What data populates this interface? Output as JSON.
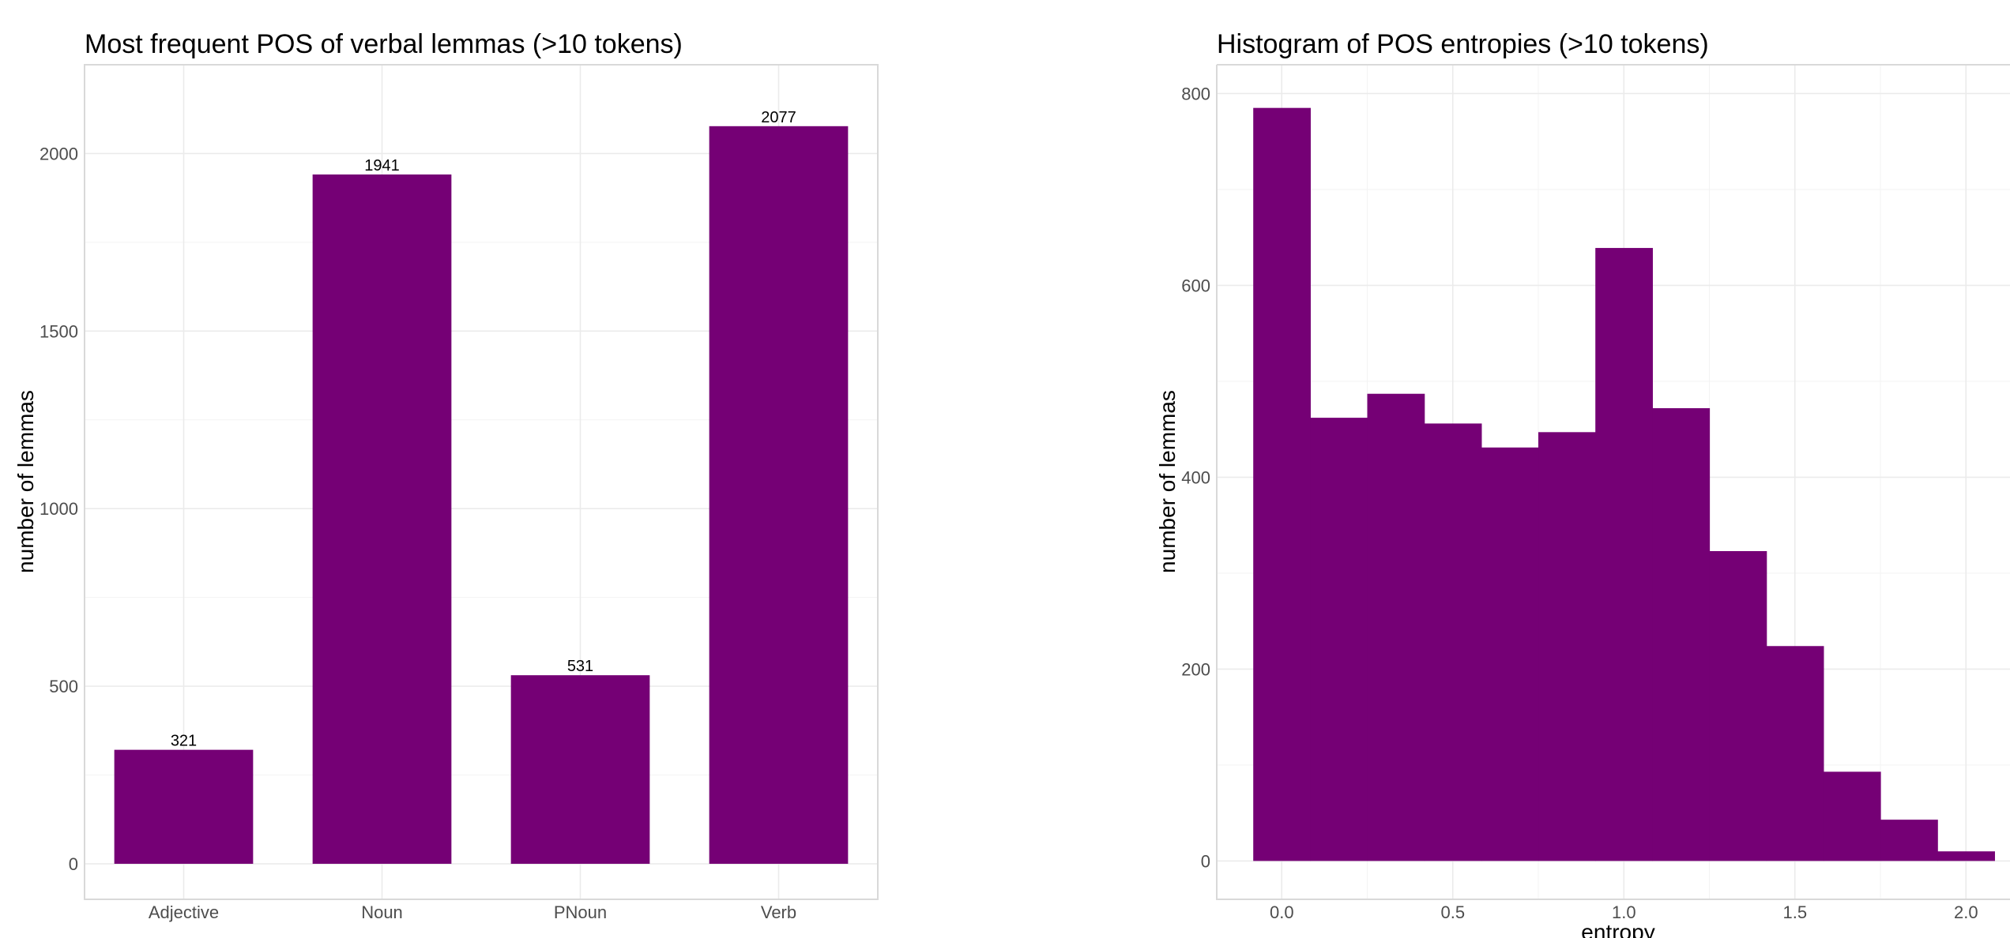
{
  "colors": {
    "bar": "#750075",
    "frame": "#d9d9d9"
  },
  "caption_fragment": "(...",
  "chart_data": [
    {
      "type": "bar",
      "title": "Most frequent POS of verbal lemmas (>10 tokens)",
      "xlabel": "",
      "ylabel": "number of lemmas",
      "categories": [
        "Adjective",
        "Noun",
        "PNoun",
        "Verb"
      ],
      "values": [
        321,
        1941,
        531,
        2077
      ],
      "data_labels": [
        "321",
        "1941",
        "531",
        "2077"
      ],
      "ylim": [
        -100,
        2250
      ],
      "yticks": [
        0,
        500,
        1000,
        1500,
        2000
      ],
      "ytick_labels": [
        "0",
        "500",
        "1000",
        "1500",
        "2000"
      ],
      "grid": true
    },
    {
      "type": "bar",
      "title": "Histogram of POS entropies (>10 tokens)",
      "xlabel": "entropy",
      "ylabel": "number of lemmas",
      "bin_width": 0.1667,
      "bin_starts": [
        -0.0833,
        0.0833,
        0.25,
        0.4167,
        0.5833,
        0.75,
        0.9167,
        1.0833,
        1.25,
        1.4167,
        1.5833,
        1.75,
        1.9167
      ],
      "values": [
        785,
        462,
        487,
        456,
        431,
        447,
        639,
        472,
        323,
        224,
        93,
        43,
        10
      ],
      "xlim": [
        -0.19,
        2.14
      ],
      "ylim": [
        -40,
        830
      ],
      "xticks": [
        0.0,
        0.5,
        1.0,
        1.5,
        2.0
      ],
      "xtick_labels": [
        "0.0",
        "0.5",
        "1.0",
        "1.5",
        "2.0"
      ],
      "yticks": [
        0,
        200,
        400,
        600,
        800
      ],
      "ytick_labels": [
        "0",
        "200",
        "400",
        "600",
        "800"
      ],
      "grid": true
    }
  ]
}
